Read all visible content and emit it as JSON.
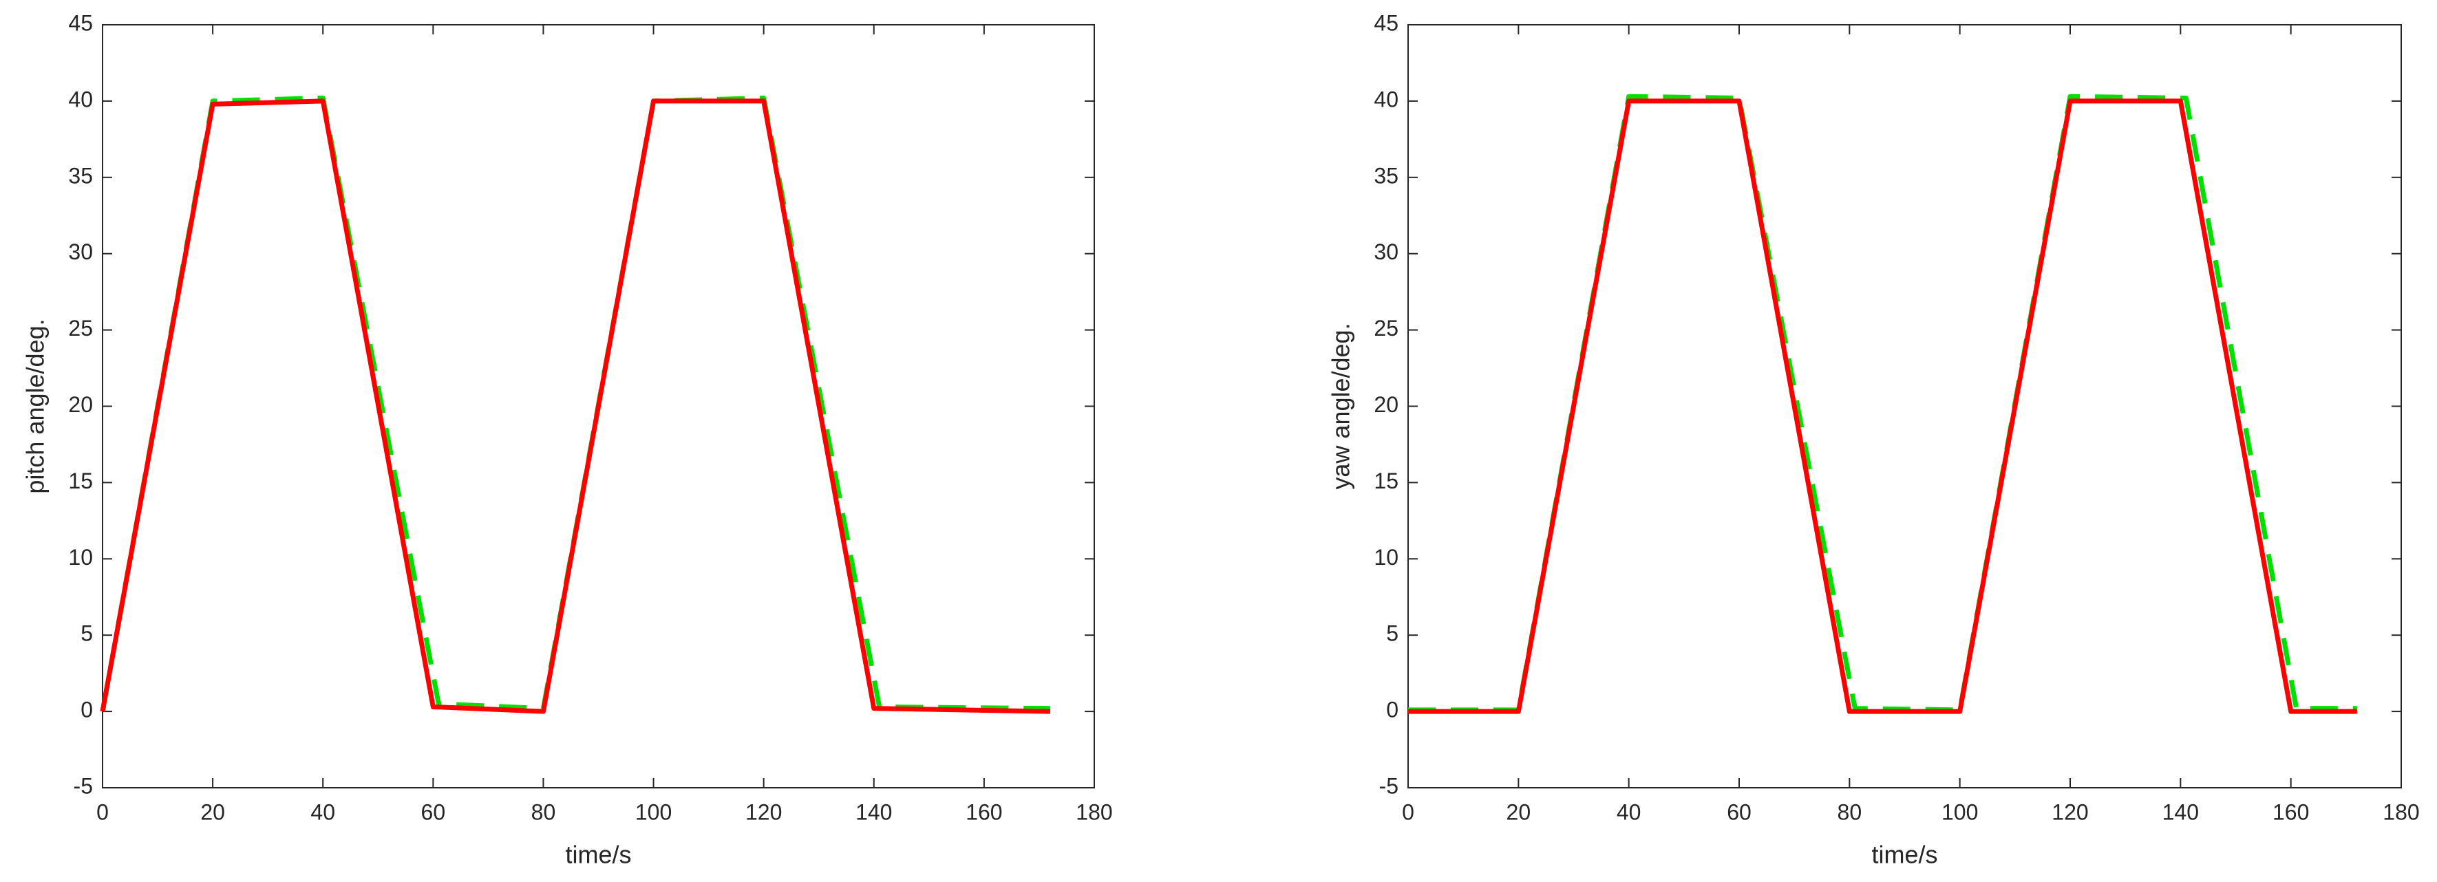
{
  "chart_data": [
    {
      "type": "line",
      "xlabel": "time/s",
      "ylabel": "pitch angle/deg.",
      "xlim": [
        0,
        180
      ],
      "xticks": [
        0,
        20,
        40,
        60,
        80,
        100,
        120,
        140,
        160,
        180
      ],
      "ylim": [
        -5,
        45
      ],
      "yticks": [
        -5,
        0,
        5,
        10,
        15,
        20,
        25,
        30,
        35,
        40,
        45
      ],
      "series": [
        {
          "color": "#00e000",
          "dashed": true,
          "x": [
            0,
            20,
            40,
            61,
            80,
            100,
            120,
            141,
            172
          ],
          "values": [
            0,
            40,
            40.2,
            0.5,
            0.2,
            40,
            40.2,
            0.3,
            0.2
          ]
        },
        {
          "color": "#ff0000",
          "dashed": false,
          "x": [
            0,
            20,
            40,
            60,
            80,
            100,
            120,
            140,
            172
          ],
          "values": [
            0,
            39.8,
            40,
            0.3,
            0,
            40,
            40,
            0.2,
            0
          ]
        }
      ]
    },
    {
      "type": "line",
      "xlabel": "time/s",
      "ylabel": "yaw angle/deg.",
      "xlim": [
        0,
        180
      ],
      "xticks": [
        0,
        20,
        40,
        60,
        80,
        100,
        120,
        140,
        160,
        180
      ],
      "ylim": [
        -5,
        45
      ],
      "yticks": [
        -5,
        0,
        5,
        10,
        15,
        20,
        25,
        30,
        35,
        40,
        45
      ],
      "series": [
        {
          "color": "#00e000",
          "dashed": true,
          "x": [
            0,
            20,
            40,
            60,
            81,
            100,
            120,
            141,
            161,
            172
          ],
          "values": [
            0.1,
            0.1,
            40.3,
            40.2,
            0.2,
            0.1,
            40.3,
            40.2,
            0.2,
            0.2
          ]
        },
        {
          "color": "#ff0000",
          "dashed": false,
          "x": [
            0,
            20,
            40,
            60,
            80,
            100,
            120,
            140,
            160,
            172
          ],
          "values": [
            0,
            0,
            40,
            40,
            0,
            0,
            40,
            40,
            0,
            0
          ]
        }
      ]
    }
  ]
}
